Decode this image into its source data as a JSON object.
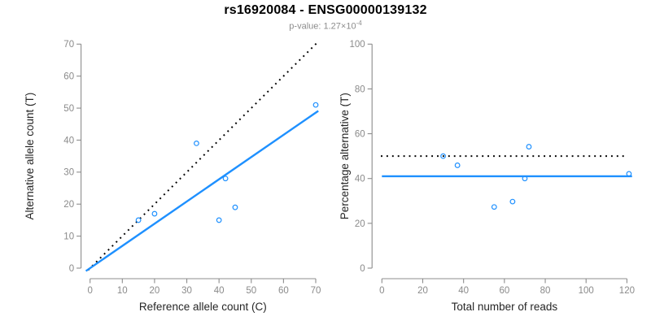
{
  "header": {
    "title": "rs16920084 - ENSG00000139132",
    "subtitle_prefix": "p-value: 1.27",
    "subtitle_times": "×10",
    "subtitle_exponent": "-4"
  },
  "colors": {
    "blue": "#1E90FF",
    "black": "#000000",
    "axis_line": "#8C8C8C",
    "tick_label": "#8A8A8A",
    "axis_title": "#262626",
    "title": "#000000",
    "subtitle": "#8C8C8C",
    "background": "#FFFFFF"
  },
  "chart_data": [
    {
      "type": "scatter",
      "name": "allele-counts",
      "xlabel": "Reference allele count (C)",
      "ylabel": "Alternative allele count (T)",
      "xlim": [
        0,
        70
      ],
      "ylim": [
        0,
        70
      ],
      "xticks": [
        0,
        10,
        20,
        30,
        40,
        50,
        60,
        70
      ],
      "yticks": [
        0,
        10,
        20,
        30,
        40,
        50,
        60,
        70
      ],
      "grid": false,
      "legend": "none",
      "points": [
        [
          15,
          15
        ],
        [
          20,
          17
        ],
        [
          33,
          39
        ],
        [
          40,
          15
        ],
        [
          42,
          28
        ],
        [
          45,
          19
        ],
        [
          70,
          51
        ]
      ],
      "lines": [
        {
          "name": "identity-line",
          "slope": 1,
          "intercept": 0,
          "style": "dotted",
          "color": "black"
        },
        {
          "name": "fit-line",
          "slope": 0.694,
          "intercept": 0,
          "style": "solid",
          "color": "blue"
        }
      ]
    },
    {
      "type": "scatter",
      "name": "percentage-vs-reads",
      "xlabel": "Total number of reads",
      "ylabel": "Percentage alternative (T)",
      "xlim": [
        0,
        120
      ],
      "ylim": [
        0,
        100
      ],
      "xticks": [
        0,
        20,
        40,
        60,
        80,
        100,
        120
      ],
      "yticks": [
        0,
        20,
        40,
        60,
        80,
        100
      ],
      "grid": false,
      "legend": "none",
      "points": [
        [
          30,
          50
        ],
        [
          37,
          45.9
        ],
        [
          55,
          27.3
        ],
        [
          64,
          29.7
        ],
        [
          70,
          40
        ],
        [
          72,
          54.2
        ],
        [
          121,
          42.1
        ]
      ],
      "lines": [
        {
          "name": "null-50pct-line",
          "hline": 50,
          "style": "dotted",
          "color": "black"
        },
        {
          "name": "mean-pct-line",
          "hline": 41,
          "style": "solid",
          "color": "blue"
        }
      ]
    }
  ]
}
